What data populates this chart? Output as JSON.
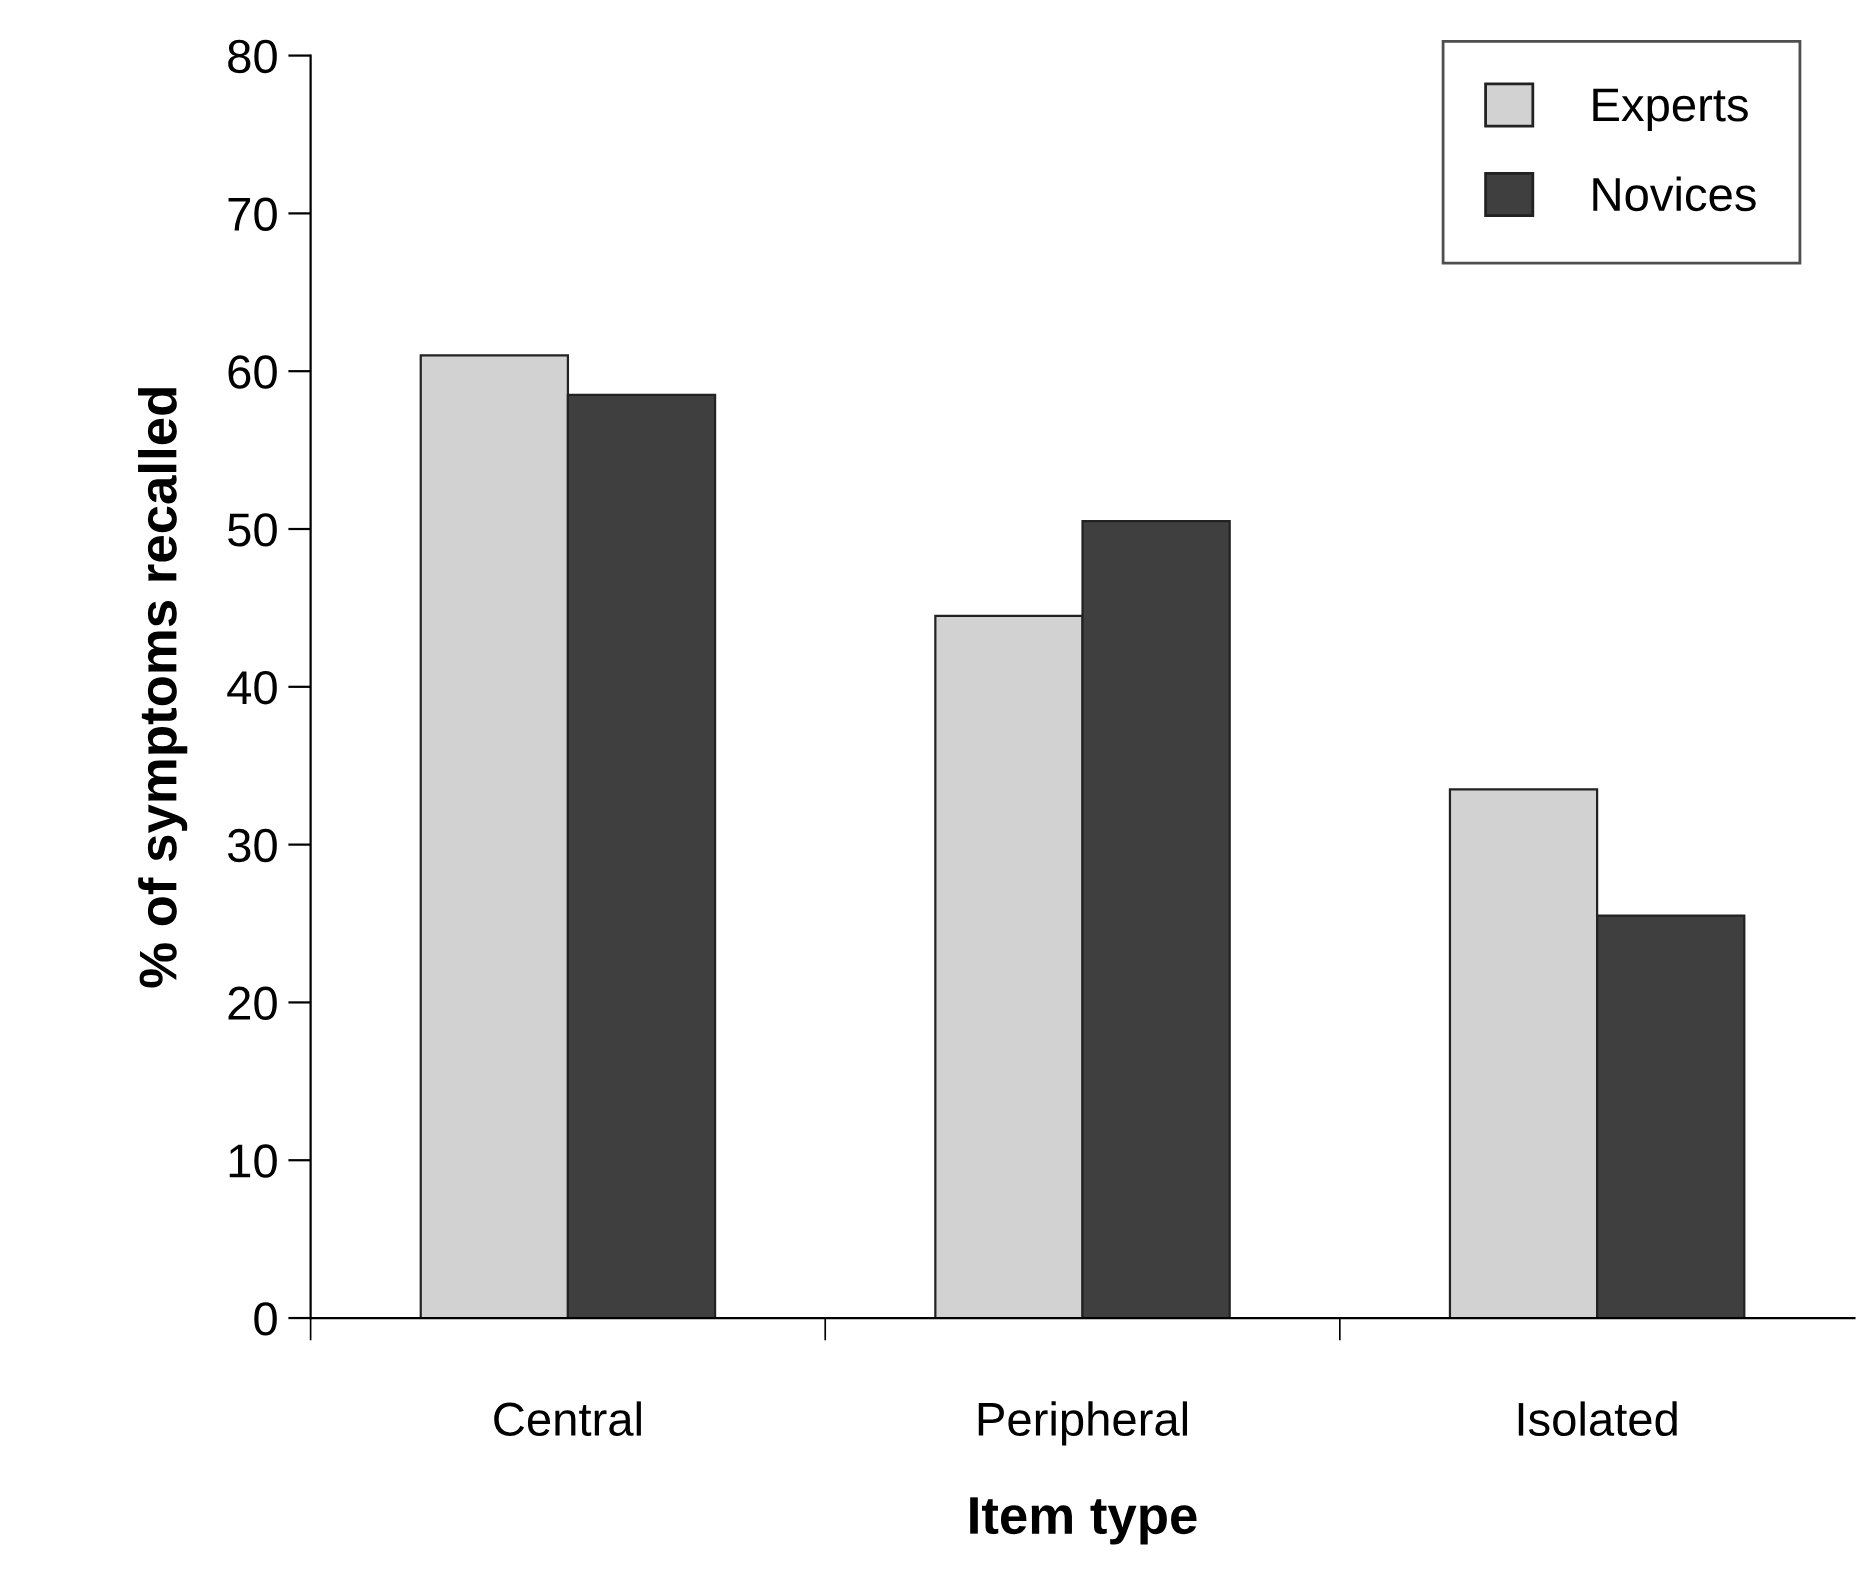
{
  "chart_data": {
    "type": "bar",
    "xlabel": "Item type",
    "ylabel": "% of symptoms recalled",
    "categories": [
      "Central",
      "Peripheral",
      "Isolated"
    ],
    "series": [
      {
        "name": "Experts",
        "color": "#d2d2d2",
        "values": [
          61,
          44.5,
          33.5
        ]
      },
      {
        "name": "Novices",
        "color": "#3f3f3f",
        "values": [
          58.5,
          50.5,
          25.5
        ]
      }
    ],
    "ylim": [
      0,
      80
    ],
    "yticks": [
      0,
      10,
      20,
      30,
      40,
      50,
      60,
      70,
      80
    ],
    "grid": false,
    "legend": "top right"
  }
}
